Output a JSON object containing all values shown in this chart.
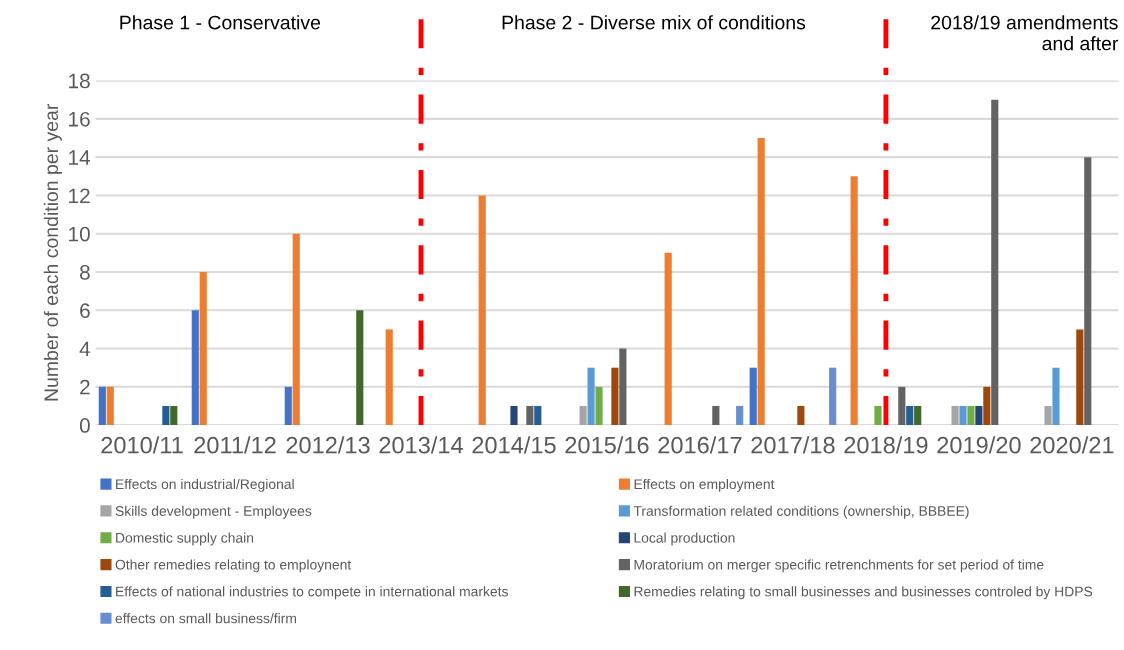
{
  "chart_data": {
    "type": "bar",
    "ylabel": "Number of each condition per year",
    "categories": [
      "2010/11",
      "2011/12",
      "2012/13",
      "2013/14",
      "2014/15",
      "2015/16",
      "2016/17",
      "2017/18",
      "2018/19",
      "2019/20",
      "2020/21"
    ],
    "series": [
      {
        "name": "Effects on industrial/Regional",
        "color": "#4472c4",
        "values": [
          2,
          6,
          2,
          0,
          0,
          0,
          0,
          3,
          0,
          0,
          0
        ]
      },
      {
        "name": "Effects on employment",
        "color": "#ed7d31",
        "values": [
          2,
          8,
          10,
          5,
          12,
          0,
          9,
          15,
          13,
          0,
          0
        ]
      },
      {
        "name": "Skills development - Employees",
        "color": "#a5a5a5",
        "values": [
          0,
          0,
          0,
          0,
          0,
          1,
          0,
          0,
          0,
          1,
          1
        ]
      },
      {
        "name": "Transformation related conditions (ownership, BBBEE)",
        "color": "#5b9bd5",
        "values": [
          0,
          0,
          0,
          0,
          0,
          3,
          0,
          0,
          0,
          1,
          3
        ]
      },
      {
        "name": "Domestic supply chain",
        "color": "#70ad47",
        "values": [
          0,
          0,
          0,
          0,
          0,
          2,
          0,
          0,
          1,
          1,
          0
        ]
      },
      {
        "name": "Local production",
        "color": "#264478",
        "values": [
          0,
          0,
          0,
          0,
          1,
          0,
          0,
          0,
          0,
          1,
          0
        ]
      },
      {
        "name": "Other remedies relating to employnent",
        "color": "#9e480e",
        "values": [
          0,
          0,
          0,
          0,
          0,
          3,
          0,
          1,
          0,
          2,
          5
        ]
      },
      {
        "name": "Moratorium on merger specific retrenchments for set period of time",
        "color": "#636363",
        "values": [
          0,
          0,
          0,
          0,
          1,
          4,
          1,
          0,
          2,
          17,
          14
        ]
      },
      {
        "name": "Effects of national industries to compete in international markets",
        "color": "#255e91",
        "values": [
          1,
          0,
          0,
          0,
          1,
          0,
          0,
          0,
          1,
          0,
          0
        ]
      },
      {
        "name": "Remedies relating to small businesses and businesses controled by HDPS",
        "color": "#43682b",
        "values": [
          1,
          0,
          6,
          0,
          0,
          0,
          0,
          0,
          1,
          0,
          0
        ]
      },
      {
        "name": "effects on small business/firm",
        "color": "#698ed0",
        "values": [
          0,
          0,
          0,
          0,
          0,
          0,
          1,
          3,
          0,
          0,
          0
        ]
      }
    ],
    "ylim": [
      0,
      18
    ],
    "yticks": [
      0,
      2,
      4,
      6,
      8,
      10,
      12,
      14,
      16,
      18
    ],
    "grid": "y",
    "legend": "bottom",
    "ref_lines": [
      {
        "axis": "x",
        "value": "2013/14",
        "color": "#ff0000",
        "line_style": "dashdot"
      },
      {
        "axis": "x",
        "value": "2018/19",
        "color": "#ff0000",
        "line_style": "dashdot"
      }
    ],
    "annotations": [
      "Phase 1 - Conservative",
      "Phase 2 - Diverse mix of conditions",
      "2018/19 amendments\nand after"
    ]
  }
}
